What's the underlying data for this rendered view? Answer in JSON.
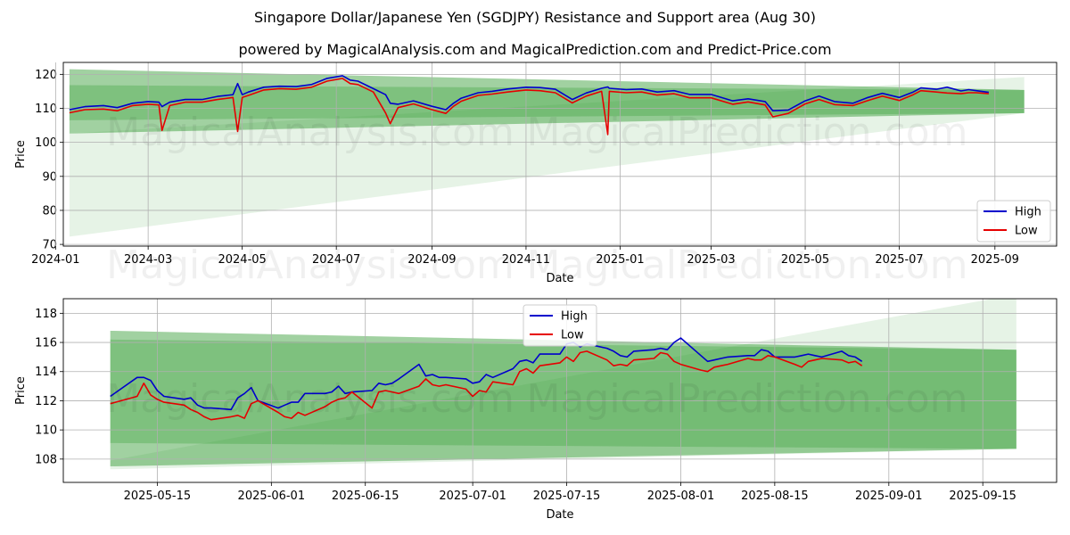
{
  "title": "Singapore Dollar/Japanese Yen (SGDJPY) Resistance and Support area (Aug 30)",
  "subtitle": "powered by MagicalAnalysis.com and MagicalPrediction.com and Predict-Price.com",
  "watermarks": [
    "MagicalAnalysis.com",
    "MagicalPrediction.com"
  ],
  "colors": {
    "high": "#0000cc",
    "low": "#e60000",
    "band": "#2e9a2e",
    "grid": "#b0b0b0"
  },
  "chart_data": [
    {
      "type": "line",
      "xlabel": "Date",
      "ylabel": "Price",
      "xlim": [
        "2024-01-06",
        "2025-10-11"
      ],
      "ylim": [
        69.5,
        123.5
      ],
      "yticks": [
        70,
        80,
        90,
        100,
        110,
        120
      ],
      "xticks": [
        "2024-01",
        "2024-03",
        "2024-05",
        "2024-07",
        "2024-09",
        "2024-11",
        "2025-01",
        "2025-03",
        "2025-05",
        "2025-07",
        "2025-09"
      ],
      "grid": true,
      "legend": "lower right",
      "bands": [
        {
          "x": [
            "2024-01-10",
            "2025-09-20"
          ],
          "upper": [
            121.5,
            115.4
          ],
          "lower": [
            102.6,
            108.6
          ],
          "opacity": 0.45
        },
        {
          "x": [
            "2024-01-10",
            "2025-09-20"
          ],
          "upper": [
            116.8,
            115.4
          ],
          "lower": [
            106.5,
            108.6
          ],
          "opacity": 0.3
        },
        {
          "x": [
            "2024-01-10",
            "2025-09-20"
          ],
          "upper": [
            102.6,
            119.2
          ],
          "lower": [
            72.3,
            108.6
          ],
          "opacity": 0.12
        }
      ],
      "series": [
        {
          "name": "High",
          "x": [
            "2024-01-10",
            "2024-01-20",
            "2024-02-01",
            "2024-02-10",
            "2024-02-20",
            "2024-03-01",
            "2024-03-08",
            "2024-03-10",
            "2024-03-15",
            "2024-03-25",
            "2024-04-05",
            "2024-04-15",
            "2024-04-25",
            "2024-04-28",
            "2024-05-01",
            "2024-05-05",
            "2024-05-15",
            "2024-05-25",
            "2024-06-05",
            "2024-06-15",
            "2024-06-25",
            "2024-07-05",
            "2024-07-10",
            "2024-07-15",
            "2024-07-25",
            "2024-08-02",
            "2024-08-05",
            "2024-08-10",
            "2024-08-20",
            "2024-09-01",
            "2024-09-10",
            "2024-09-15",
            "2024-09-20",
            "2024-10-01",
            "2024-10-10",
            "2024-10-20",
            "2024-11-01",
            "2024-11-10",
            "2024-11-20",
            "2024-12-01",
            "2024-12-10",
            "2024-12-20",
            "2024-12-24",
            "2024-12-25",
            "2025-01-05",
            "2025-01-15",
            "2025-01-25",
            "2025-02-05",
            "2025-02-15",
            "2025-03-01",
            "2025-03-15",
            "2025-03-25",
            "2025-04-05",
            "2025-04-10",
            "2025-04-20",
            "2025-05-01",
            "2025-05-10",
            "2025-05-20",
            "2025-06-01",
            "2025-06-10",
            "2025-06-20",
            "2025-07-01",
            "2025-07-10",
            "2025-07-15",
            "2025-07-25",
            "2025-08-01",
            "2025-08-10",
            "2025-08-15",
            "2025-08-20",
            "2025-08-28"
          ],
          "values": [
            109.6,
            110.5,
            110.8,
            110.2,
            111.5,
            112.0,
            111.8,
            110.5,
            111.8,
            112.6,
            112.6,
            113.5,
            114.0,
            117.3,
            114.0,
            114.8,
            116.2,
            116.5,
            116.4,
            117.0,
            118.8,
            119.6,
            118.3,
            118.0,
            115.8,
            114.0,
            111.5,
            111.2,
            112.2,
            110.6,
            109.6,
            111.5,
            113.0,
            114.6,
            115.0,
            115.7,
            116.2,
            116.1,
            115.6,
            112.6,
            114.5,
            115.9,
            116.3,
            115.9,
            115.5,
            115.7,
            114.8,
            115.2,
            114.1,
            114.1,
            112.2,
            112.8,
            112.0,
            109.3,
            109.5,
            112.2,
            113.6,
            112.0,
            111.5,
            113.1,
            114.4,
            113.2,
            114.8,
            116.0,
            115.6,
            116.2,
            115.1,
            115.5,
            115.2,
            114.7
          ]
        },
        {
          "name": "Low",
          "x": [
            "2024-01-10",
            "2024-01-20",
            "2024-02-01",
            "2024-02-10",
            "2024-02-20",
            "2024-03-01",
            "2024-03-08",
            "2024-03-10",
            "2024-03-15",
            "2024-03-25",
            "2024-04-05",
            "2024-04-15",
            "2024-04-25",
            "2024-04-28",
            "2024-05-01",
            "2024-05-05",
            "2024-05-15",
            "2024-05-25",
            "2024-06-05",
            "2024-06-15",
            "2024-06-25",
            "2024-07-05",
            "2024-07-10",
            "2024-07-15",
            "2024-07-25",
            "2024-08-02",
            "2024-08-05",
            "2024-08-10",
            "2024-08-20",
            "2024-09-01",
            "2024-09-10",
            "2024-09-15",
            "2024-09-20",
            "2024-10-01",
            "2024-10-10",
            "2024-10-20",
            "2024-11-01",
            "2024-11-10",
            "2024-11-20",
            "2024-12-01",
            "2024-12-10",
            "2024-12-20",
            "2024-12-24",
            "2024-12-25",
            "2025-01-05",
            "2025-01-15",
            "2025-01-25",
            "2025-02-05",
            "2025-02-15",
            "2025-03-01",
            "2025-03-15",
            "2025-03-25",
            "2025-04-05",
            "2025-04-10",
            "2025-04-20",
            "2025-05-01",
            "2025-05-10",
            "2025-05-20",
            "2025-06-01",
            "2025-06-10",
            "2025-06-20",
            "2025-07-01",
            "2025-07-10",
            "2025-07-15",
            "2025-07-25",
            "2025-08-01",
            "2025-08-10",
            "2025-08-15",
            "2025-08-20",
            "2025-08-28"
          ],
          "values": [
            108.7,
            109.6,
            109.8,
            109.3,
            110.8,
            111.2,
            111.0,
            103.5,
            110.8,
            111.8,
            111.8,
            112.6,
            113.2,
            103.2,
            113.2,
            113.8,
            115.4,
            115.8,
            115.6,
            116.2,
            118.0,
            118.8,
            117.3,
            117.0,
            114.8,
            108.6,
            105.5,
            110.2,
            111.3,
            109.6,
            108.5,
            110.6,
            112.1,
            113.8,
            114.2,
            114.8,
            115.4,
            115.2,
            114.6,
            111.6,
            113.6,
            115.0,
            102.3,
            115.0,
            114.6,
            114.8,
            113.9,
            114.3,
            113.1,
            113.1,
            111.2,
            111.9,
            111.0,
            107.5,
            108.5,
            111.3,
            112.6,
            111.1,
            110.8,
            112.2,
            113.6,
            112.3,
            114.0,
            115.2,
            114.8,
            114.5,
            114.3,
            114.6,
            114.6,
            114.3
          ]
        }
      ]
    },
    {
      "type": "line",
      "xlabel": "Date",
      "ylabel": "Price",
      "xlim": [
        "2025-05-01",
        "2025-09-26"
      ],
      "ylim": [
        106.4,
        119.0
      ],
      "yticks": [
        108,
        110,
        112,
        114,
        116,
        118
      ],
      "xticks": [
        "2025-05-15",
        "2025-06-01",
        "2025-06-15",
        "2025-07-01",
        "2025-07-15",
        "2025-08-01",
        "2025-08-15",
        "2025-09-01",
        "2025-09-15"
      ],
      "grid": true,
      "legend": "upper center",
      "bands": [
        {
          "x": [
            "2025-05-08",
            "2025-09-20"
          ],
          "upper": [
            116.8,
            115.5
          ],
          "lower": [
            107.5,
            108.7
          ],
          "opacity": 0.45
        },
        {
          "x": [
            "2025-05-08",
            "2025-09-20"
          ],
          "upper": [
            116.2,
            115.5
          ],
          "lower": [
            109.1,
            108.7
          ],
          "opacity": 0.3
        },
        {
          "x": [
            "2025-05-08",
            "2025-09-20"
          ],
          "upper": [
            107.9,
            119.3
          ],
          "lower": [
            107.3,
            108.7
          ],
          "opacity": 0.12
        }
      ],
      "series": [
        {
          "name": "High",
          "x": [
            "2025-05-08",
            "2025-05-12",
            "2025-05-13",
            "2025-05-14",
            "2025-05-15",
            "2025-05-16",
            "2025-05-19",
            "2025-05-20",
            "2025-05-21",
            "2025-05-22",
            "2025-05-23",
            "2025-05-26",
            "2025-05-27",
            "2025-05-28",
            "2025-05-29",
            "2025-05-30",
            "2025-06-02",
            "2025-06-03",
            "2025-06-04",
            "2025-06-05",
            "2025-06-06",
            "2025-06-09",
            "2025-06-10",
            "2025-06-11",
            "2025-06-12",
            "2025-06-13",
            "2025-06-16",
            "2025-06-17",
            "2025-06-18",
            "2025-06-19",
            "2025-06-20",
            "2025-06-23",
            "2025-06-24",
            "2025-06-25",
            "2025-06-26",
            "2025-06-27",
            "2025-06-30",
            "2025-07-01",
            "2025-07-02",
            "2025-07-03",
            "2025-07-04",
            "2025-07-07",
            "2025-07-08",
            "2025-07-09",
            "2025-07-10",
            "2025-07-11",
            "2025-07-14",
            "2025-07-15",
            "2025-07-16",
            "2025-07-17",
            "2025-07-18",
            "2025-07-21",
            "2025-07-22",
            "2025-07-23",
            "2025-07-24",
            "2025-07-25",
            "2025-07-28",
            "2025-07-29",
            "2025-07-30",
            "2025-07-31",
            "2025-08-01",
            "2025-08-04",
            "2025-08-05",
            "2025-08-06",
            "2025-08-07",
            "2025-08-08",
            "2025-08-11",
            "2025-08-12",
            "2025-08-13",
            "2025-08-14",
            "2025-08-15",
            "2025-08-18",
            "2025-08-19",
            "2025-08-20",
            "2025-08-21",
            "2025-08-22",
            "2025-08-25",
            "2025-08-26",
            "2025-08-27",
            "2025-08-28"
          ],
          "values": [
            112.3,
            113.6,
            113.6,
            113.4,
            112.7,
            112.3,
            112.1,
            112.2,
            111.7,
            111.5,
            111.5,
            111.4,
            112.2,
            112.5,
            112.9,
            112.0,
            111.5,
            111.7,
            111.9,
            111.9,
            112.5,
            112.5,
            112.6,
            113.0,
            112.5,
            112.6,
            112.7,
            113.2,
            113.1,
            113.2,
            113.5,
            114.5,
            113.7,
            113.8,
            113.6,
            113.6,
            113.5,
            113.2,
            113.3,
            113.8,
            113.6,
            114.2,
            114.7,
            114.8,
            114.6,
            115.2,
            115.2,
            115.9,
            116.0,
            115.7,
            115.9,
            115.6,
            115.4,
            115.1,
            115.0,
            115.4,
            115.5,
            115.6,
            115.5,
            116.0,
            116.3,
            115.1,
            114.7,
            114.8,
            114.9,
            115.0,
            115.1,
            115.1,
            115.5,
            115.4,
            115.0,
            115.0,
            115.1,
            115.2,
            115.1,
            115.0,
            115.4,
            115.1,
            115.0,
            114.7
          ]
        },
        {
          "name": "Low",
          "x": [
            "2025-05-08",
            "2025-05-12",
            "2025-05-13",
            "2025-05-14",
            "2025-05-15",
            "2025-05-16",
            "2025-05-19",
            "2025-05-20",
            "2025-05-21",
            "2025-05-22",
            "2025-05-23",
            "2025-05-26",
            "2025-05-27",
            "2025-05-28",
            "2025-05-29",
            "2025-05-30",
            "2025-06-02",
            "2025-06-03",
            "2025-06-04",
            "2025-06-05",
            "2025-06-06",
            "2025-06-09",
            "2025-06-10",
            "2025-06-11",
            "2025-06-12",
            "2025-06-13",
            "2025-06-16",
            "2025-06-17",
            "2025-06-18",
            "2025-06-19",
            "2025-06-20",
            "2025-06-23",
            "2025-06-24",
            "2025-06-25",
            "2025-06-26",
            "2025-06-27",
            "2025-06-30",
            "2025-07-01",
            "2025-07-02",
            "2025-07-03",
            "2025-07-04",
            "2025-07-07",
            "2025-07-08",
            "2025-07-09",
            "2025-07-10",
            "2025-07-11",
            "2025-07-14",
            "2025-07-15",
            "2025-07-16",
            "2025-07-17",
            "2025-07-18",
            "2025-07-21",
            "2025-07-22",
            "2025-07-23",
            "2025-07-24",
            "2025-07-25",
            "2025-07-28",
            "2025-07-29",
            "2025-07-30",
            "2025-07-31",
            "2025-08-01",
            "2025-08-04",
            "2025-08-05",
            "2025-08-06",
            "2025-08-07",
            "2025-08-08",
            "2025-08-11",
            "2025-08-12",
            "2025-08-13",
            "2025-08-14",
            "2025-08-15",
            "2025-08-18",
            "2025-08-19",
            "2025-08-20",
            "2025-08-21",
            "2025-08-22",
            "2025-08-25",
            "2025-08-26",
            "2025-08-27",
            "2025-08-28"
          ],
          "values": [
            111.8,
            112.3,
            113.2,
            112.4,
            112.1,
            111.9,
            111.7,
            111.4,
            111.2,
            110.9,
            110.7,
            110.9,
            111.0,
            110.8,
            111.8,
            112.0,
            111.2,
            110.9,
            110.8,
            111.2,
            111.0,
            111.6,
            111.9,
            112.1,
            112.2,
            112.6,
            111.5,
            112.6,
            112.7,
            112.6,
            112.5,
            113.0,
            113.5,
            113.1,
            113.0,
            113.1,
            112.8,
            112.3,
            112.7,
            112.6,
            113.3,
            113.1,
            114.0,
            114.2,
            113.9,
            114.4,
            114.6,
            115.0,
            114.7,
            115.3,
            115.4,
            114.8,
            114.4,
            114.5,
            114.4,
            114.8,
            114.9,
            115.3,
            115.2,
            114.7,
            114.5,
            114.1,
            114.0,
            114.3,
            114.4,
            114.5,
            114.9,
            114.8,
            114.8,
            115.1,
            115.0,
            114.5,
            114.3,
            114.7,
            114.8,
            114.9,
            114.8,
            114.6,
            114.7,
            114.4
          ]
        }
      ]
    }
  ]
}
